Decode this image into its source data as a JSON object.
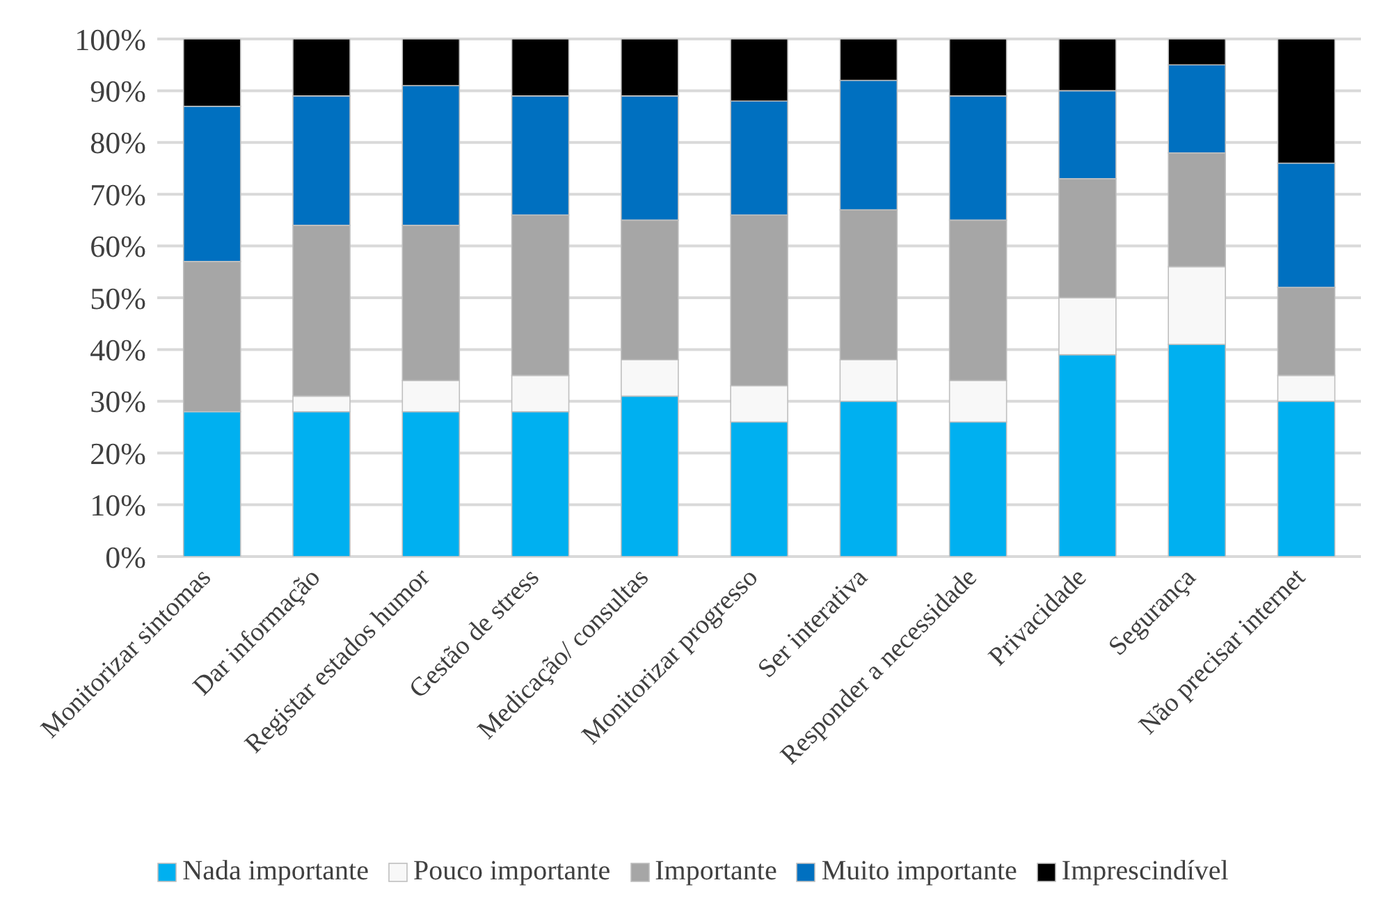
{
  "chart_data": {
    "type": "bar",
    "stacked": true,
    "categories": [
      "Monitorizar sintomas",
      "Dar informação",
      "Registar estados humor",
      "Gestão de stress",
      "Medicação/ consultas",
      "Monitorizar progresso",
      "Ser interativa",
      "Responder a necessidade",
      "Privacidade",
      "Segurança",
      "Não precisar internet"
    ],
    "series": [
      {
        "name": "Nada importante",
        "color": "#00b0f0",
        "values": [
          28,
          28,
          28,
          28,
          31,
          26,
          30,
          26,
          39,
          41,
          30
        ]
      },
      {
        "name": "Pouco importante",
        "color": "#f8f8f8",
        "values": [
          0,
          3,
          6,
          7,
          7,
          7,
          8,
          8,
          11,
          15,
          5
        ]
      },
      {
        "name": "Importante",
        "color": "#a6a6a6",
        "values": [
          29,
          33,
          30,
          31,
          27,
          33,
          29,
          31,
          23,
          22,
          17
        ]
      },
      {
        "name": "Muito importante",
        "color": "#0070c0",
        "values": [
          30,
          25,
          27,
          23,
          24,
          22,
          25,
          24,
          17,
          17,
          24
        ]
      },
      {
        "name": "Imprescindível",
        "color": "#000000",
        "values": [
          13,
          11,
          9,
          11,
          11,
          12,
          8,
          11,
          10,
          5,
          24
        ]
      }
    ],
    "ylim": [
      0,
      100
    ],
    "yticks": [
      {
        "value": 0,
        "label": "0%"
      },
      {
        "value": 10,
        "label": "10%"
      },
      {
        "value": 20,
        "label": "20%"
      },
      {
        "value": 30,
        "label": "30%"
      },
      {
        "value": 40,
        "label": "40%"
      },
      {
        "value": 50,
        "label": "50%"
      },
      {
        "value": 60,
        "label": "60%"
      },
      {
        "value": 70,
        "label": "70%"
      },
      {
        "value": 80,
        "label": "80%"
      },
      {
        "value": 90,
        "label": "90%"
      },
      {
        "value": 100,
        "label": "100%"
      }
    ],
    "grid": "y",
    "legend": "bottom"
  }
}
